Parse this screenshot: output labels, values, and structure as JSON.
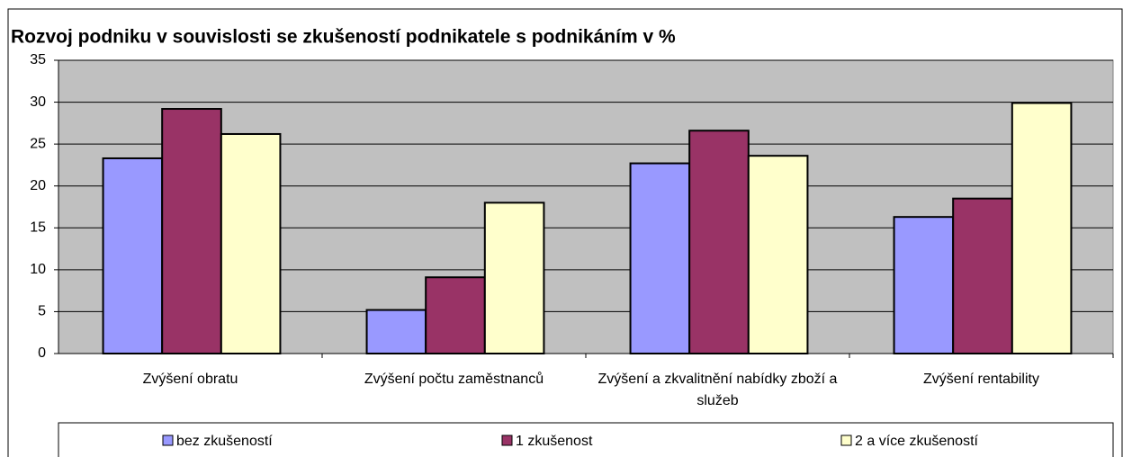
{
  "chart_data": {
    "type": "bar",
    "title": "Rozvoj podniku v souvislosti se zkušeností podnikatele s podnikáním v %",
    "categories": [
      "Zvýšení obratu",
      "Zvýšení počtu zaměstnanců",
      "Zvýšení a zkvalitnění nabídky zboží a služeb",
      "Zvýšení rentability"
    ],
    "series": [
      {
        "name": "bez zkušeností",
        "color": "#9999ff",
        "values": [
          23.3,
          5.2,
          22.7,
          16.3
        ]
      },
      {
        "name": "1 zkušenost",
        "color": "#993366",
        "values": [
          29.2,
          9.1,
          26.6,
          18.5
        ]
      },
      {
        "name": "2 a více zkušeností",
        "color": "#ffffcc",
        "values": [
          26.2,
          18.0,
          23.6,
          29.9
        ]
      }
    ],
    "ylim": [
      0,
      35
    ],
    "yticks": [
      0,
      5,
      10,
      15,
      20,
      25,
      30,
      35
    ],
    "grid": true,
    "legend": "bottom"
  }
}
